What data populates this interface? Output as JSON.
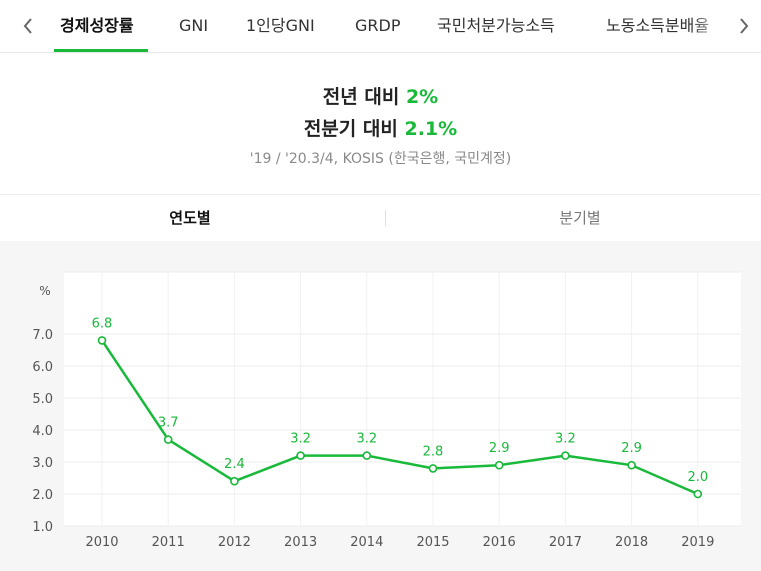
{
  "tabs": [
    {
      "label": "경제성장률",
      "active": true
    },
    {
      "label": "GNI",
      "active": false
    },
    {
      "label": "1인당GNI",
      "active": false
    },
    {
      "label": "GRDP",
      "active": false
    },
    {
      "label": "국민처분가능소득",
      "active": false
    },
    {
      "label": "노동소득분배율",
      "active": false
    }
  ],
  "summary": {
    "line1_label": "전년 대비",
    "line1_value": "2%",
    "line2_label": "전분기 대비",
    "line2_value": "2.1%",
    "source": "'19 / '20.3/4, KOSIS (한국은행, 국민계정)"
  },
  "subtabs": {
    "yearly": "연도별",
    "quarterly": "분기별"
  },
  "colors": {
    "accent": "#19b93a"
  },
  "chart_data": {
    "type": "line",
    "title": "",
    "xlabel": "",
    "ylabel": "%",
    "categories": [
      "2010",
      "2011",
      "2012",
      "2013",
      "2014",
      "2015",
      "2016",
      "2017",
      "2018",
      "2019"
    ],
    "series": [
      {
        "name": "경제성장률",
        "values": [
          6.8,
          3.7,
          2.4,
          3.2,
          3.2,
          2.8,
          2.9,
          3.2,
          2.9,
          2.0
        ]
      }
    ],
    "data_labels": [
      "6.8",
      "3.7",
      "2.4",
      "3.2",
      "3.2",
      "2.8",
      "2.9",
      "3.2",
      "2.9",
      "2.0"
    ],
    "ylim": [
      1.0,
      7.0
    ],
    "yticks": [
      "1.0",
      "2.0",
      "3.0",
      "4.0",
      "5.0",
      "6.0",
      "7.0"
    ],
    "grid": true
  }
}
